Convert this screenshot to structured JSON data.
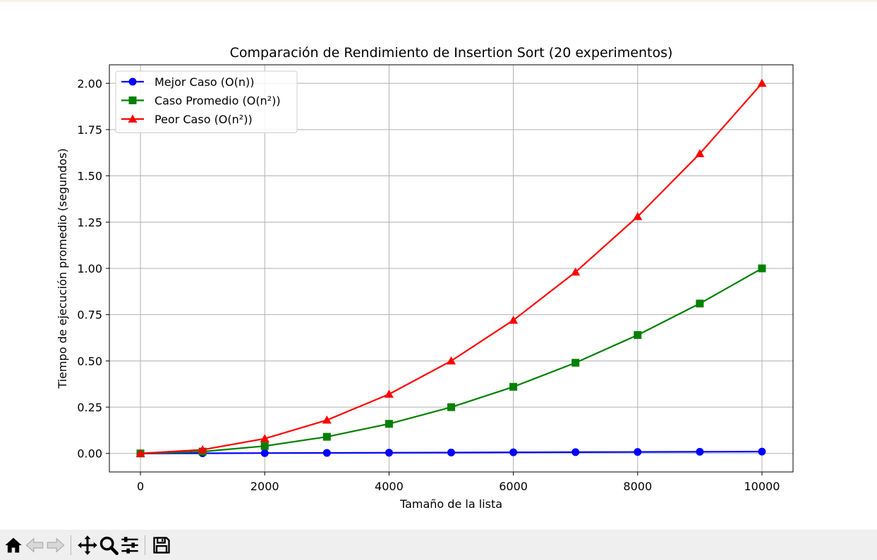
{
  "chart_data": {
    "type": "line",
    "title": "Comparación de Rendimiento de Insertion Sort (20 experimentos)",
    "xlabel": "Tamaño de la lista",
    "ylabel": "Tiempo de ejecución promedio (segundos)",
    "x": [
      0,
      1000,
      2000,
      3000,
      4000,
      5000,
      6000,
      7000,
      8000,
      9000,
      10000
    ],
    "xlim": [
      -500,
      10500
    ],
    "ylim": [
      -0.1,
      2.1
    ],
    "xticks": [
      0,
      2000,
      4000,
      6000,
      8000,
      10000
    ],
    "xtick_labels": [
      "0",
      "2000",
      "4000",
      "6000",
      "8000",
      "10000"
    ],
    "yticks": [
      0,
      0.25,
      0.5,
      0.75,
      1.0,
      1.25,
      1.5,
      1.75,
      2.0
    ],
    "ytick_labels": [
      "0.00",
      "0.25",
      "0.50",
      "0.75",
      "1.00",
      "1.25",
      "1.50",
      "1.75",
      "2.00"
    ],
    "grid": true,
    "legend_position": "upper-left",
    "series": [
      {
        "name": "Mejor Caso (O(n))",
        "color": "#0000ff",
        "marker": "circle",
        "values": [
          0,
          0.001,
          0.002,
          0.003,
          0.004,
          0.005,
          0.006,
          0.007,
          0.008,
          0.009,
          0.01
        ]
      },
      {
        "name": "Caso Promedio (O(n²))",
        "color": "#008000",
        "marker": "square",
        "values": [
          0,
          0.01,
          0.04,
          0.09,
          0.16,
          0.25,
          0.36,
          0.49,
          0.64,
          0.81,
          1.0
        ]
      },
      {
        "name": "Peor Caso (O(n²))",
        "color": "#ff0000",
        "marker": "triangle",
        "values": [
          0,
          0.02,
          0.08,
          0.18,
          0.32,
          0.5,
          0.72,
          0.98,
          1.28,
          1.62,
          2.0
        ]
      }
    ]
  },
  "toolbar": {
    "buttons": [
      {
        "icon": "home-icon",
        "name": "home-button"
      },
      {
        "icon": "back-arrow-icon",
        "name": "back-button"
      },
      {
        "icon": "forward-arrow-icon",
        "name": "forward-button"
      },
      {
        "icon": "pan-icon",
        "name": "pan-button"
      },
      {
        "icon": "zoom-icon",
        "name": "zoom-button"
      },
      {
        "icon": "sliders-icon",
        "name": "configure-subplots-button"
      },
      {
        "icon": "save-icon",
        "name": "save-button"
      }
    ]
  }
}
